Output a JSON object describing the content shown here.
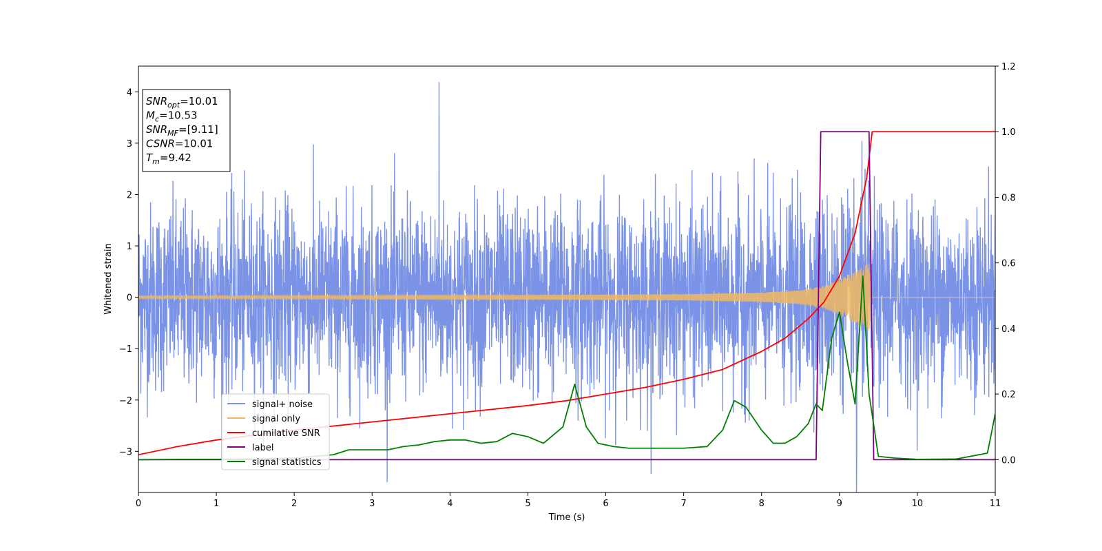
{
  "chart_data": {
    "type": "line",
    "xlabel": "Time (s)",
    "ylabel": "Whitened strain",
    "xlim": [
      0,
      11
    ],
    "ylim": [
      -3.8,
      4.5
    ],
    "y2lim": [
      -0.1,
      1.2
    ],
    "x_ticks": [
      0,
      1,
      2,
      3,
      4,
      5,
      6,
      7,
      8,
      9,
      10,
      11
    ],
    "y_ticks": [
      -3,
      -2,
      -1,
      0,
      1,
      2,
      3,
      4
    ],
    "y2_ticks": [
      0.0,
      0.2,
      0.4,
      0.6,
      0.8,
      1.0,
      1.2
    ],
    "grid": false,
    "legend_position": "lower-left",
    "info_box": {
      "position": "upper-left",
      "lines": [
        {
          "main": "SNR",
          "sub": "opt",
          "value": "=10.01"
        },
        {
          "main": "M",
          "sub": "c",
          "value": "=10.53"
        },
        {
          "main": "SNR",
          "sub": "MF",
          "value": "=[9.11]"
        },
        {
          "main": "CSNR",
          "sub": "",
          "value": "=10.01"
        },
        {
          "main": "T",
          "sub": "m",
          "value": "=9.42"
        }
      ]
    },
    "series": [
      {
        "name": "signal+ noise",
        "color": "#7b93e6",
        "axis": "left",
        "description_values": {
          "noise_std": 0.9,
          "max_peak": 4.15,
          "min_peak": -3.4
        }
      },
      {
        "name": "signal only",
        "color": "#f0b860",
        "axis": "left",
        "envelope": {
          "x": [
            0,
            2,
            4,
            6,
            7,
            8,
            8.5,
            8.8,
            9.0,
            9.2,
            9.38,
            9.42,
            11
          ],
          "amplitude": [
            0.03,
            0.035,
            0.04,
            0.05,
            0.06,
            0.09,
            0.14,
            0.22,
            0.35,
            0.5,
            0.68,
            0.0,
            0.0
          ]
        }
      },
      {
        "name": "cumilative SNR",
        "color": "#ff0000",
        "axis": "right",
        "x": [
          0,
          0.5,
          1,
          2,
          3,
          4,
          5,
          5.5,
          6,
          6.5,
          7,
          7.5,
          8,
          8.3,
          8.6,
          8.8,
          9.0,
          9.2,
          9.35,
          9.42,
          11
        ],
        "y": [
          0.015,
          0.04,
          0.06,
          0.09,
          0.115,
          0.14,
          0.165,
          0.18,
          0.2,
          0.22,
          0.245,
          0.275,
          0.33,
          0.37,
          0.43,
          0.48,
          0.56,
          0.69,
          0.86,
          1.0,
          1.0
        ]
      },
      {
        "name": "label",
        "color": "#800080",
        "axis": "right",
        "x": [
          0,
          8.7,
          8.76,
          9.38,
          9.44,
          11
        ],
        "y": [
          0,
          0,
          1,
          1,
          0,
          0
        ]
      },
      {
        "name": "signal statistics",
        "color": "#008000",
        "axis": "right",
        "x": [
          0,
          0.5,
          1.0,
          1.5,
          2.0,
          2.5,
          2.7,
          3.0,
          3.2,
          3.4,
          3.6,
          3.8,
          4.0,
          4.2,
          4.4,
          4.6,
          4.8,
          4.9,
          5.0,
          5.2,
          5.35,
          5.45,
          5.6,
          5.75,
          5.9,
          6.1,
          6.3,
          6.6,
          7.0,
          7.3,
          7.5,
          7.65,
          7.8,
          8.0,
          8.15,
          8.3,
          8.45,
          8.6,
          8.7,
          8.78,
          8.9,
          9.0,
          9.1,
          9.2,
          9.3,
          9.38,
          9.5,
          9.7,
          10.0,
          10.5,
          10.9,
          11.0
        ],
        "y": [
          0.0,
          0.001,
          0.001,
          0.002,
          0.005,
          0.015,
          0.03,
          0.03,
          0.03,
          0.04,
          0.045,
          0.055,
          0.06,
          0.06,
          0.05,
          0.055,
          0.08,
          0.075,
          0.07,
          0.05,
          0.08,
          0.1,
          0.23,
          0.1,
          0.05,
          0.04,
          0.035,
          0.035,
          0.035,
          0.04,
          0.09,
          0.18,
          0.16,
          0.09,
          0.05,
          0.05,
          0.07,
          0.11,
          0.17,
          0.15,
          0.37,
          0.45,
          0.3,
          0.17,
          0.56,
          0.2,
          0.01,
          0.005,
          0.001,
          0.002,
          0.02,
          0.14
        ]
      }
    ]
  }
}
